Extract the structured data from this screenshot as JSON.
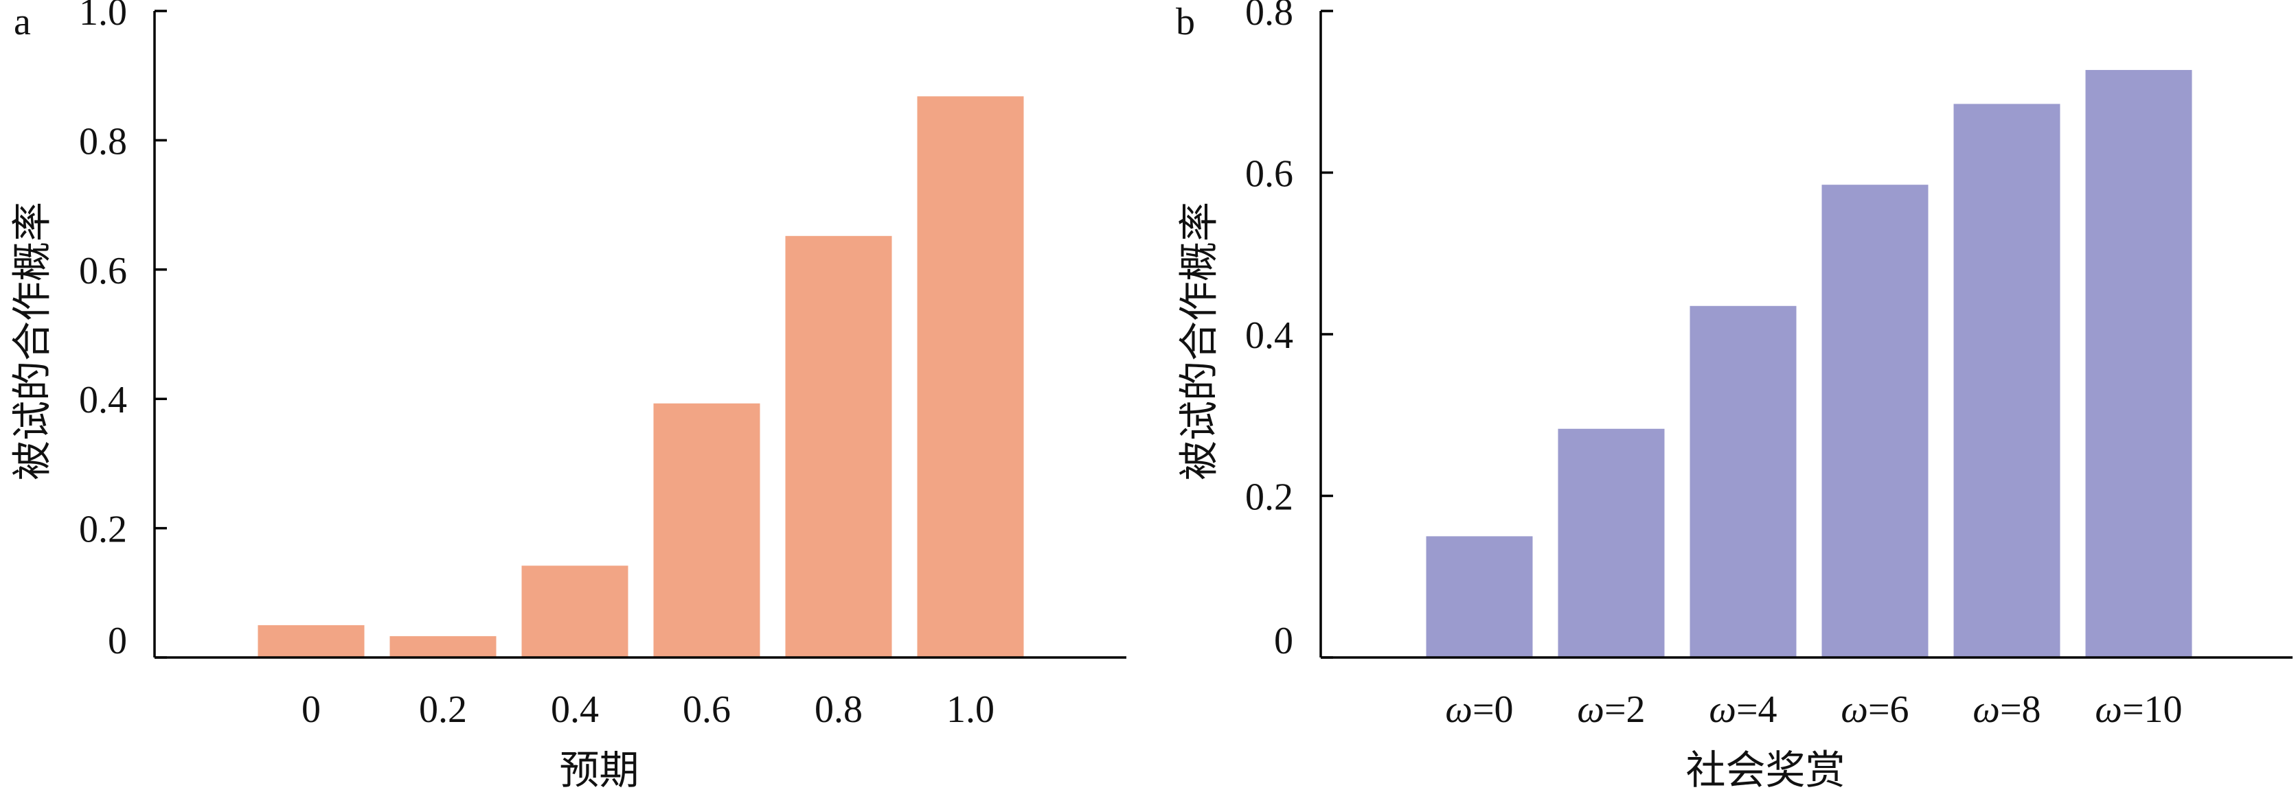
{
  "chart_data": [
    {
      "panel": "a",
      "type": "bar",
      "categories": [
        "0",
        "0.2",
        "0.4",
        "0.6",
        "0.8",
        "1.0"
      ],
      "values": [
        0.05,
        0.033,
        0.142,
        0.393,
        0.652,
        0.868
      ],
      "ylim": [
        0,
        1.0
      ],
      "yticks": [
        "0",
        "0.2",
        "0.4",
        "0.6",
        "0.8",
        "1.0"
      ],
      "xlabel": "预期",
      "ylabel": "被试的合作概率",
      "color": "#F2A585",
      "grid": false
    },
    {
      "panel": "b",
      "type": "bar",
      "categories": [
        {
          "sym": "ω",
          "rest": "=0"
        },
        {
          "sym": "ω",
          "rest": "=2"
        },
        {
          "sym": "ω",
          "rest": "=4"
        },
        {
          "sym": "ω",
          "rest": "=6"
        },
        {
          "sym": "ω",
          "rest": "=8"
        },
        {
          "sym": "ω",
          "rest": "=10"
        }
      ],
      "values": [
        0.15,
        0.283,
        0.435,
        0.585,
        0.685,
        0.727
      ],
      "ylim": [
        0,
        0.8
      ],
      "yticks": [
        "0",
        "0.2",
        "0.4",
        "0.6",
        "0.8"
      ],
      "xlabel": "社会奖赏",
      "ylabel": "被试的合作概率",
      "color": "#9B9BCE",
      "grid": false
    }
  ]
}
